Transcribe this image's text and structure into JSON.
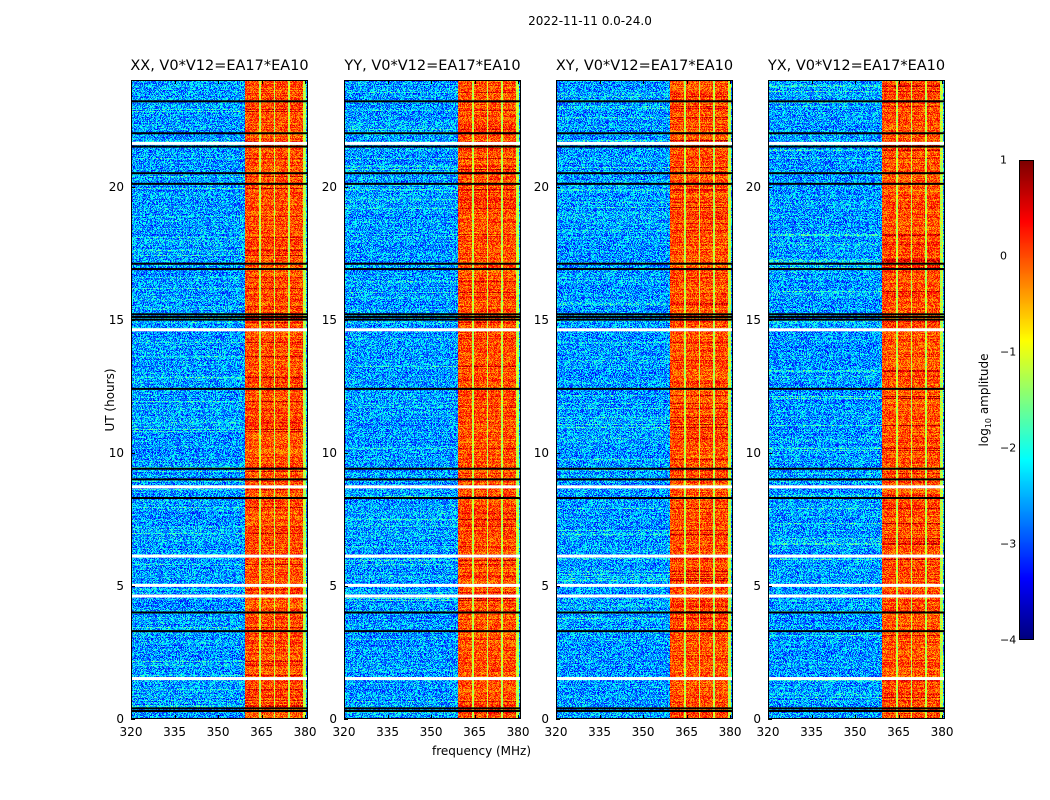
{
  "chart_data": {
    "type": "heatmap",
    "title": "2022-11-11 0.0-24.0",
    "xlabel": "frequency (MHz)",
    "ylabel": "UT (hours)",
    "xlim": [
      320,
      381
    ],
    "ylim": [
      0,
      24
    ],
    "xticks": [
      "320",
      "335",
      "350",
      "365",
      "380"
    ],
    "xtick_values": [
      320,
      335,
      350,
      365,
      380
    ],
    "yticks": [
      "0",
      "5",
      "10",
      "15",
      "20"
    ],
    "ytick_values": [
      0,
      5,
      10,
      15,
      20
    ],
    "panels": [
      {
        "title": "XX, V0*V12=EA17*EA10",
        "correlation": "XX"
      },
      {
        "title": "YY, V0*V12=EA17*EA10",
        "correlation": "YY"
      },
      {
        "title": "XY, V0*V12=EA17*EA10",
        "correlation": "XY"
      },
      {
        "title": "YX, V0*V12=EA17*EA10",
        "correlation": "YX"
      }
    ],
    "colorbar": {
      "label_prefix": "log",
      "label_sub": "10",
      "label_suffix": " amplitude",
      "colormap": "jet",
      "range": [
        -4,
        1
      ],
      "ticks": [
        "1",
        "0",
        "−1",
        "−2",
        "−3",
        "−4"
      ],
      "tick_values": [
        1,
        0,
        -1,
        -2,
        -3,
        -4
      ]
    },
    "features": {
      "bright_band_MHz": [
        359,
        380
      ],
      "band_sub_channels_MHz": [
        [
          359,
          364
        ],
        [
          364.5,
          369
        ],
        [
          369.5,
          374
        ],
        [
          374.5,
          379
        ]
      ],
      "background_log_amplitude": -2.6,
      "band_log_amplitude": 0.0,
      "flagged_blank_UT_hours": [
        1.5,
        4.6,
        5.0,
        6.1,
        8.7,
        14.6,
        21.6
      ],
      "flagged_black_UT_hours": [
        0.3,
        0.4,
        3.3,
        4.0,
        8.3,
        9.0,
        9.4,
        12.4,
        15.0,
        15.1,
        15.2,
        16.9,
        17.1,
        20.1,
        20.5,
        21.5,
        22.0,
        23.2
      ]
    }
  }
}
